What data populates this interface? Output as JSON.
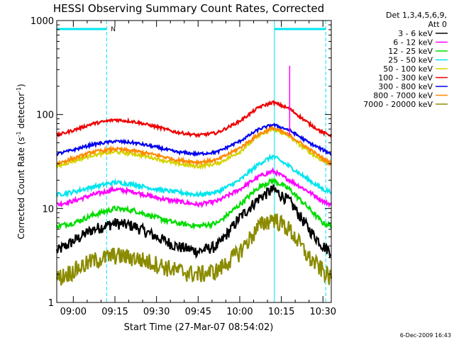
{
  "chart_data": {
    "type": "line",
    "title": "HESSI Observing Summary Count Rates, Corrected",
    "xlabel": "Start Time (27-Mar-07 08:54:02)",
    "ylabel": "Corrected Count Rate (s",
    "ylabel_sup1": "-1",
    "ylabel_mid": " detector",
    "ylabel_sup2": "-1",
    "ylabel_end": ")",
    "y_scale": "log",
    "ylim": [
      1,
      1000
    ],
    "xlim": [
      "08:54:02",
      "10:33:00"
    ],
    "x_ticks": [
      "09:00",
      "09:15",
      "09:30",
      "09:45",
      "10:00",
      "10:15",
      "10:30"
    ],
    "y_ticks": [
      "1",
      "10",
      "100",
      "1000"
    ],
    "legend_header_1": "Det 1,3,4,5,6,9,",
    "legend_header_2": "Att 0",
    "legend_position": "right",
    "timestamp": "6-Dec-2009 16:43",
    "night_label": "N",
    "night_periods": [
      [
        "08:54:02",
        "09:12:00"
      ],
      [
        "10:12:30",
        "10:31:00"
      ]
    ],
    "vertical_lines": [
      "08:54:02",
      "09:12:00",
      "10:12:30",
      "10:31:00"
    ],
    "spike": {
      "time": "10:18:00",
      "peak": 330
    },
    "x_samples": [
      "08:54",
      "09:00",
      "09:07",
      "09:15",
      "09:22",
      "09:30",
      "09:37",
      "09:45",
      "09:52",
      "10:00",
      "10:07",
      "10:12",
      "10:18",
      "10:25",
      "10:30",
      "10:33"
    ],
    "series": [
      {
        "name": "3 - 6 keV",
        "color": "#000000",
        "values": [
          3.5,
          4.5,
          6,
          7,
          6.5,
          5,
          4,
          3.5,
          4,
          8,
          13,
          16,
          12,
          6,
          4,
          3.5
        ]
      },
      {
        "name": "6 - 12 keV",
        "color": "#ff00ff",
        "values": [
          11,
          12,
          14,
          16,
          15,
          13,
          12,
          11,
          12,
          16,
          22,
          25,
          20,
          15,
          12,
          11
        ]
      },
      {
        "name": "12 - 25 keV",
        "color": "#00dd00",
        "values": [
          6.5,
          7,
          8.5,
          10,
          9.5,
          8,
          7,
          6.5,
          7,
          11,
          17,
          20,
          16,
          10,
          7,
          6.5
        ]
      },
      {
        "name": "25 - 50 keV",
        "color": "#00e5ee",
        "values": [
          14,
          15,
          17,
          19,
          18,
          16,
          15,
          14,
          15,
          20,
          30,
          36,
          28,
          20,
          16,
          15
        ]
      },
      {
        "name": "50 - 100 keV",
        "color": "#d4d400",
        "values": [
          28,
          32,
          37,
          40,
          38,
          34,
          30,
          28,
          30,
          40,
          60,
          70,
          58,
          40,
          32,
          30
        ]
      },
      {
        "name": "100 - 300 keV",
        "color": "#ee0000",
        "values": [
          60,
          68,
          80,
          88,
          84,
          74,
          65,
          60,
          64,
          85,
          120,
          135,
          115,
          80,
          64,
          60
        ]
      },
      {
        "name": "300 - 800 keV",
        "color": "#0000ee",
        "values": [
          38,
          42,
          48,
          52,
          50,
          45,
          40,
          38,
          40,
          52,
          70,
          78,
          68,
          50,
          42,
          38
        ]
      },
      {
        "name": "800 - 7000 keV",
        "color": "#ff8800",
        "values": [
          30,
          34,
          40,
          43,
          41,
          37,
          33,
          31,
          33,
          44,
          62,
          72,
          60,
          43,
          34,
          30
        ]
      },
      {
        "name": "7000 - 20000 keV",
        "color": "#8b8b00",
        "values": [
          1.8,
          2.2,
          2.8,
          3.2,
          3,
          2.6,
          2.2,
          2,
          2.2,
          3.5,
          6.5,
          8,
          6,
          3,
          2.2,
          1.8
        ]
      }
    ]
  }
}
